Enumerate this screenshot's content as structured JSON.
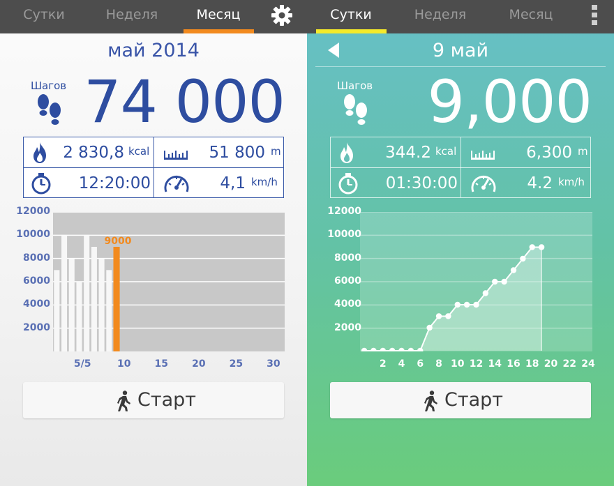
{
  "left": {
    "tabs": [
      {
        "label": "Сутки",
        "active": false
      },
      {
        "label": "Неделя",
        "active": false
      },
      {
        "label": "Месяц",
        "active": true
      }
    ],
    "title": "май 2014",
    "steps_label": "Шагов",
    "steps_value": "74 000",
    "stats": {
      "calories": {
        "value": "2 830,8",
        "unit": "kcal"
      },
      "distance": {
        "value": "51 800",
        "unit": "m"
      },
      "duration": {
        "value": "12:20:00",
        "unit": ""
      },
      "speed": {
        "value": "4,1",
        "unit": "km/h"
      }
    },
    "chart_data": {
      "type": "bar",
      "y_ticks": [
        "12000",
        "10000",
        "8000",
        "6000",
        "4000",
        "2000"
      ],
      "ylim": [
        0,
        12000
      ],
      "x_ticks": [
        "5/5",
        "10",
        "15",
        "20",
        "25",
        "30"
      ],
      "x_tick_values": [
        5,
        10,
        15,
        20,
        25,
        30
      ],
      "xlim": [
        0.5,
        31.5
      ],
      "x": [
        1,
        2,
        3,
        4,
        5,
        6,
        7,
        8,
        9
      ],
      "values": [
        7000,
        10000,
        8000,
        6000,
        10000,
        9000,
        8000,
        7000,
        9000
      ],
      "highlight_index": 8,
      "highlight_label": "9000",
      "grid": true
    },
    "start_label": "Старт",
    "colors": {
      "accent": "#f28a1e",
      "text": "#3a55a8"
    }
  },
  "right": {
    "tabs": [
      {
        "label": "Сутки",
        "active": true
      },
      {
        "label": "Неделя",
        "active": false
      },
      {
        "label": "Месяц",
        "active": false
      }
    ],
    "title": "9 май",
    "steps_label": "Шагов",
    "steps_value": "9,000",
    "stats": {
      "calories": {
        "value": "344.2",
        "unit": "kcal"
      },
      "distance": {
        "value": "6,300",
        "unit": "m"
      },
      "duration": {
        "value": "01:30:00",
        "unit": ""
      },
      "speed": {
        "value": "4.2",
        "unit": "km/h"
      }
    },
    "chart_data": {
      "type": "area",
      "y_ticks": [
        "12000",
        "10000",
        "8000",
        "6000",
        "4000",
        "2000"
      ],
      "ylim": [
        0,
        12000
      ],
      "x_ticks": [
        "2",
        "4",
        "6",
        "8",
        "10",
        "12",
        "14",
        "16",
        "18",
        "20",
        "22",
        "24"
      ],
      "x_tick_values": [
        2,
        4,
        6,
        8,
        10,
        12,
        14,
        16,
        18,
        20,
        22,
        24
      ],
      "xlim": [
        0,
        24
      ],
      "x": [
        0,
        1,
        2,
        3,
        4,
        5,
        6,
        7,
        8,
        9,
        10,
        11,
        12,
        13,
        14,
        15,
        16,
        17,
        18,
        19
      ],
      "values": [
        0,
        0,
        0,
        0,
        0,
        0,
        0,
        2000,
        3000,
        3000,
        4000,
        4000,
        4000,
        5000,
        6000,
        6000,
        7000,
        8000,
        9000,
        9000
      ],
      "grid": true
    },
    "start_label": "Старт",
    "colors": {
      "accent": "#f5ea2a",
      "text": "#ffffff"
    }
  }
}
